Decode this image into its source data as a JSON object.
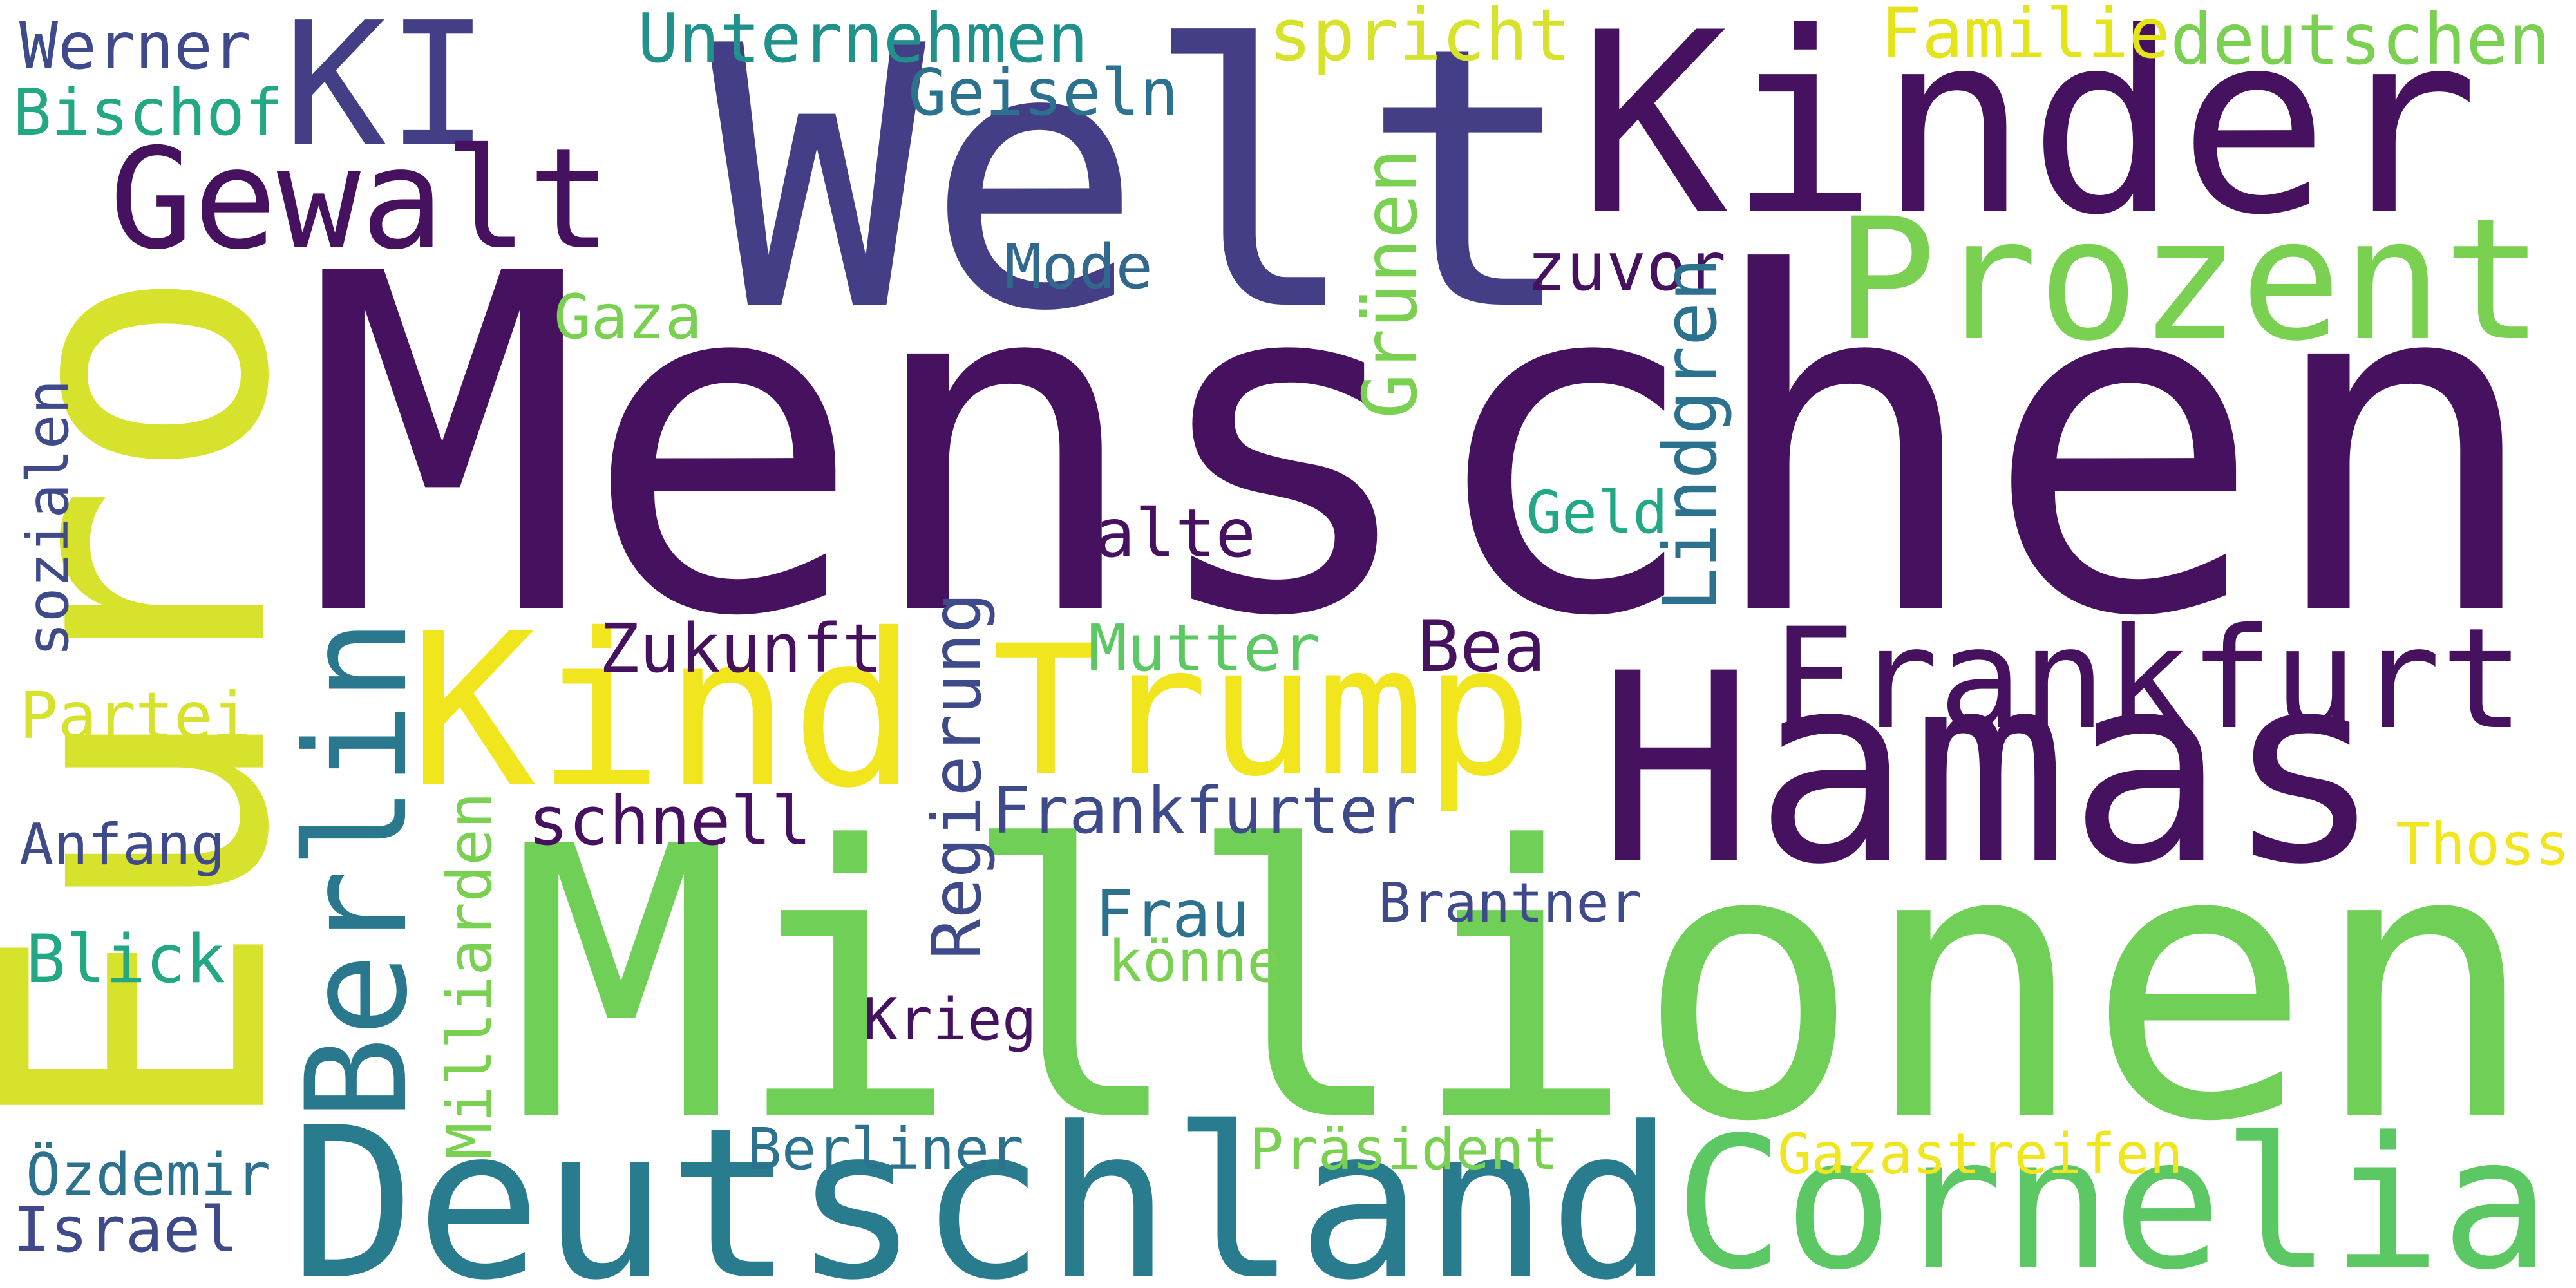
{
  "words": [
    {
      "text": "Menschen",
      "color": "#46115f"
    },
    {
      "text": "Millionen",
      "color": "#70cf57"
    },
    {
      "text": "Welt",
      "color": "#433e85"
    },
    {
      "text": "Kinder",
      "color": "#46115f"
    },
    {
      "text": "Euro",
      "color": "#d6e22b"
    },
    {
      "text": "Hamas",
      "color": "#46115f"
    },
    {
      "text": "Deutschland",
      "color": "#297b8e"
    },
    {
      "text": "Cornelia",
      "color": "#5cc863"
    },
    {
      "text": "Kind",
      "color": "#f1e51d"
    },
    {
      "text": "Trump",
      "color": "#f1e51d"
    },
    {
      "text": "Prozent",
      "color": "#7ad151"
    },
    {
      "text": "Frankfurt",
      "color": "#46115f"
    },
    {
      "text": "KI",
      "color": "#433e85"
    },
    {
      "text": "Gewalt",
      "color": "#46115f"
    },
    {
      "text": "Berlin",
      "color": "#2a788e"
    },
    {
      "text": "Unternehmen",
      "color": "#21918c"
    },
    {
      "text": "spricht",
      "color": "#d6e22b"
    },
    {
      "text": "Familie",
      "color": "#e4e419"
    },
    {
      "text": "deutschen",
      "color": "#7ad151"
    },
    {
      "text": "Werner",
      "color": "#3e4a89"
    },
    {
      "text": "Bischof",
      "color": "#22a884"
    },
    {
      "text": "Geiseln",
      "color": "#2c728e"
    },
    {
      "text": "Mode",
      "color": "#31688e"
    },
    {
      "text": "zuvor",
      "color": "#46115f"
    },
    {
      "text": "Gaza",
      "color": "#7ad151"
    },
    {
      "text": "Grünen",
      "color": "#7ad151"
    },
    {
      "text": "Lindgren",
      "color": "#2c728e"
    },
    {
      "text": "Geld",
      "color": "#22a884"
    },
    {
      "text": "alte",
      "color": "#46115f"
    },
    {
      "text": "sozialen",
      "color": "#3e4a89"
    },
    {
      "text": "Zukunft",
      "color": "#46115f"
    },
    {
      "text": "Mutter",
      "color": "#5cc863"
    },
    {
      "text": "Bea",
      "color": "#46115f"
    },
    {
      "text": "Regierung",
      "color": "#3e4a89"
    },
    {
      "text": "Partei",
      "color": "#d6e22b"
    },
    {
      "text": "schnell",
      "color": "#46115f"
    },
    {
      "text": "Frankfurter",
      "color": "#3e4a89"
    },
    {
      "text": "Anfang",
      "color": "#3e4a89"
    },
    {
      "text": "Thoss",
      "color": "#f1e51d"
    },
    {
      "text": "Milliarden",
      "color": "#7ad151"
    },
    {
      "text": "Frau",
      "color": "#2c728e"
    },
    {
      "text": "Brantner",
      "color": "#3e4a89"
    },
    {
      "text": "Blick",
      "color": "#22a884"
    },
    {
      "text": "könne",
      "color": "#7ad151"
    },
    {
      "text": "Krieg",
      "color": "#46115f"
    },
    {
      "text": "Berliner",
      "color": "#2c728e"
    },
    {
      "text": "Präsident",
      "color": "#7ad151"
    },
    {
      "text": "Gazastreifen",
      "color": "#f1e51d"
    },
    {
      "text": "Özdemir",
      "color": "#2c728e"
    },
    {
      "text": "Israel",
      "color": "#3e4a89"
    }
  ]
}
